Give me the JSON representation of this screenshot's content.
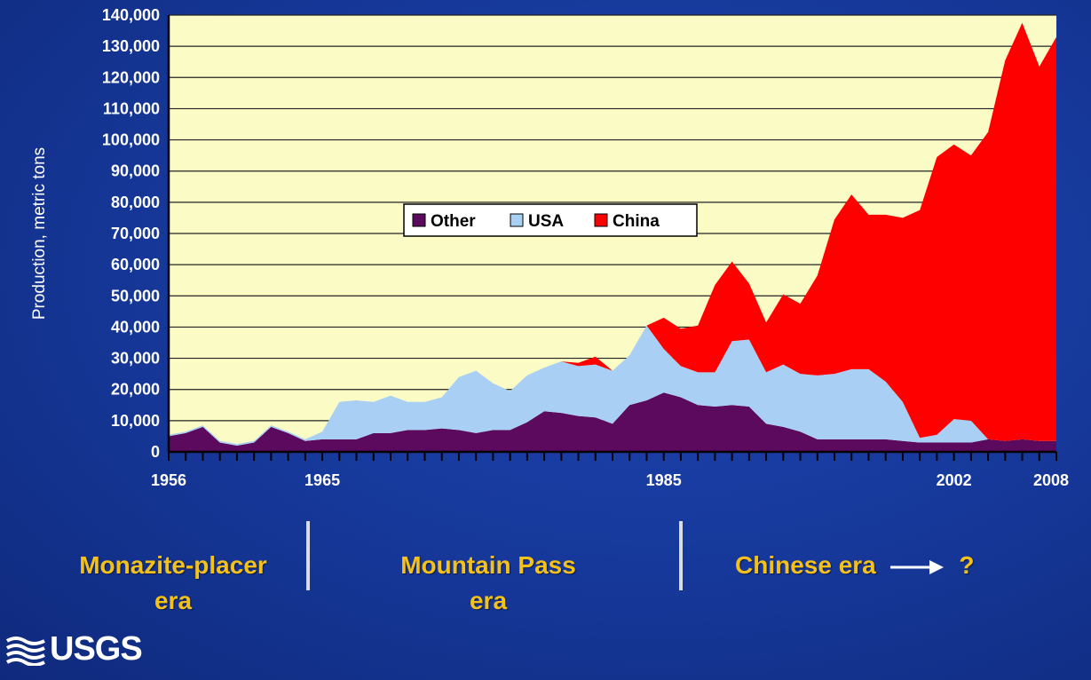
{
  "chart_data": {
    "type": "area",
    "stacked": true,
    "ylabel": "Production, metric tons",
    "ylim": [
      0,
      140000
    ],
    "y_ticks": [
      "0",
      "10,000",
      "20,000",
      "30,000",
      "40,000",
      "50,000",
      "60,000",
      "70,000",
      "80,000",
      "90,000",
      "100,000",
      "110,000",
      "120,000",
      "130,000",
      "140,000"
    ],
    "x_ticks": [
      "1956",
      "1965",
      "1985",
      "2002",
      "2008"
    ],
    "grid": true,
    "legend_position": "center",
    "x": [
      1956,
      1957,
      1958,
      1959,
      1960,
      1961,
      1962,
      1963,
      1964,
      1965,
      1966,
      1967,
      1968,
      1969,
      1970,
      1971,
      1972,
      1973,
      1974,
      1975,
      1976,
      1977,
      1978,
      1979,
      1980,
      1981,
      1982,
      1983,
      1984,
      1985,
      1986,
      1987,
      1988,
      1989,
      1990,
      1991,
      1992,
      1993,
      1994,
      1995,
      1996,
      1997,
      1998,
      1999,
      2000,
      2001,
      2002,
      2003,
      2004,
      2005,
      2006,
      2007,
      2008
    ],
    "series": [
      {
        "name": "Other",
        "color": "#5c0a5e",
        "values": [
          5000,
          6000,
          8000,
          3000,
          2000,
          3000,
          8000,
          6000,
          3500,
          4000,
          4000,
          4000,
          6000,
          6000,
          7000,
          7000,
          7500,
          7000,
          6000,
          7000,
          7000,
          9500,
          13000,
          12500,
          11500,
          11000,
          9000,
          15000,
          16500,
          19000,
          17500,
          15000,
          14500,
          15000,
          14500,
          9000,
          8000,
          6500,
          4000,
          4000,
          4000,
          4000,
          4000,
          3500,
          3000,
          3000,
          3000,
          3000,
          4000,
          3500,
          4000,
          3500,
          3500
        ]
      },
      {
        "name": "USA",
        "color": "#a9cff5",
        "values": [
          500,
          500,
          500,
          500,
          500,
          500,
          500,
          500,
          500,
          2500,
          12000,
          12500,
          10000,
          12000,
          9000,
          9000,
          10000,
          17000,
          20000,
          15000,
          12500,
          15000,
          14000,
          16500,
          16000,
          17000,
          17000,
          16000,
          24000,
          14000,
          10000,
          10500,
          11000,
          20500,
          21500,
          16500,
          20000,
          18500,
          20500,
          21000,
          22500,
          22500,
          18500,
          12500,
          1500,
          2500,
          7500,
          7000,
          0,
          0,
          0,
          0,
          0
        ]
      },
      {
        "name": "China",
        "color": "#ff0000",
        "values": [
          0,
          0,
          0,
          0,
          0,
          0,
          0,
          0,
          0,
          0,
          0,
          0,
          0,
          0,
          0,
          0,
          0,
          0,
          0,
          0,
          0,
          0,
          0,
          0,
          1000,
          2500,
          0,
          0,
          0,
          10000,
          12000,
          15000,
          28000,
          25500,
          18000,
          16000,
          22500,
          22500,
          32000,
          49500,
          56000,
          49500,
          53500,
          59000,
          73000,
          89000,
          88000,
          85000,
          98500,
          122000,
          133500,
          120000,
          129500
        ]
      }
    ]
  },
  "eras": {
    "era1": "Monazite-placer\nera",
    "era2": "Mountain Pass\nera",
    "era3": "Chinese era",
    "era3_suffix": "?"
  },
  "logo": {
    "text": "USGS",
    "icon": "usgs-waves-icon"
  },
  "colors": {
    "plot_bg": "#fbfbc6",
    "era_text": "#f4c11a"
  }
}
